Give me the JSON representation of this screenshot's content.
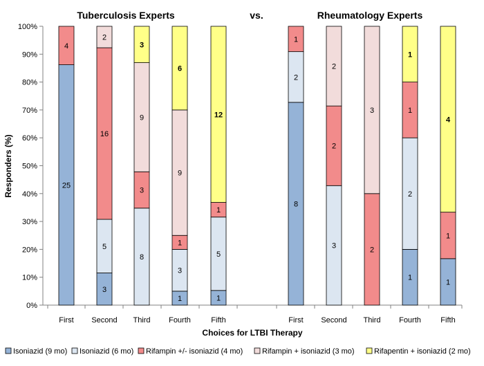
{
  "chart_data": {
    "type": "bar",
    "stacked": true,
    "titles": [
      "Tuberculosis  Experts",
      "vs.",
      "Rheumatology  Experts"
    ],
    "ylabel": "Responders (%)",
    "xlabel": "Choices for LTBI Therapy",
    "yticks": [
      "0%",
      "10%",
      "20%",
      "30%",
      "40%",
      "50%",
      "60%",
      "70%",
      "80%",
      "90%",
      "100%"
    ],
    "ylim": [
      0,
      100
    ],
    "categories": [
      "First",
      "Second",
      "Third",
      "Fourth",
      "Fifth"
    ],
    "series_names": [
      "Isoniazid (9 mo)",
      "Isoniazid (6 mo)",
      "Rifampin +/- isoniazid (4 mo)",
      "Rifampin + isoniazid  (3 mo)",
      "Rifapentin + isoniazid (2 mo)"
    ],
    "colors": [
      "#95b3d7",
      "#dce6f1",
      "#f28b8b",
      "#f2dcdb",
      "#ffff88"
    ],
    "groups": [
      {
        "name": "Tuberculosis  Experts",
        "counts": [
          [
            25,
            0,
            4,
            0,
            0
          ],
          [
            3,
            5,
            16,
            2,
            0
          ],
          [
            0,
            8,
            3,
            9,
            3
          ],
          [
            1,
            3,
            1,
            9,
            6
          ],
          [
            1,
            5,
            1,
            0,
            12
          ]
        ]
      },
      {
        "name": "Rheumatology  Experts",
        "counts": [
          [
            8,
            2,
            1,
            0,
            0
          ],
          [
            0,
            3,
            2,
            2,
            0
          ],
          [
            0,
            0,
            2,
            3,
            0
          ],
          [
            1,
            2,
            1,
            0,
            1
          ],
          [
            1,
            0,
            1,
            0,
            4
          ]
        ]
      }
    ],
    "bold_series_labels": [
      4
    ],
    "legend_position": "bottom",
    "grid": false
  }
}
